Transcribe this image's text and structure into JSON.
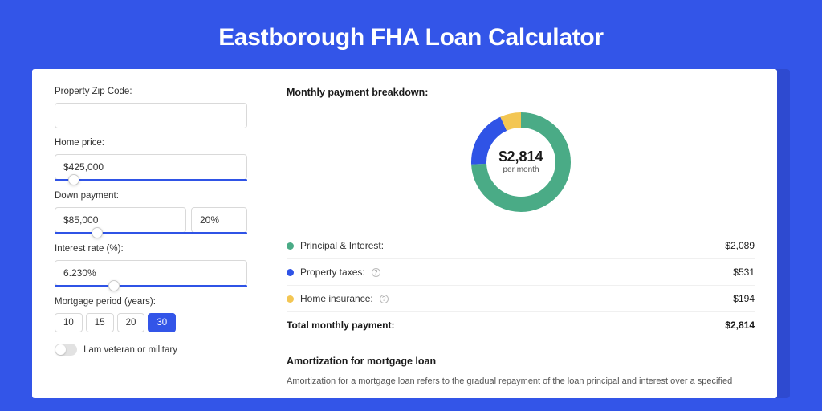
{
  "page": {
    "title": "Eastborough FHA Loan Calculator",
    "background_color": "#3355e8",
    "card_shadow_color": "#2e4ad0",
    "card_bg": "#ffffff"
  },
  "form": {
    "zip": {
      "label": "Property Zip Code:",
      "value": ""
    },
    "home_price": {
      "label": "Home price:",
      "value": "$425,000",
      "slider_pct": 7
    },
    "down_payment": {
      "label": "Down payment:",
      "value": "$85,000",
      "pct": "20%",
      "slider_pct": 19
    },
    "interest": {
      "label": "Interest rate (%):",
      "value": "6.230%",
      "slider_pct": 28
    },
    "period": {
      "label": "Mortgage period (years):",
      "options": [
        "10",
        "15",
        "20",
        "30"
      ],
      "selected": "30"
    },
    "veteran": {
      "label": "I am veteran or military",
      "on": false
    }
  },
  "breakdown": {
    "title": "Monthly payment breakdown:",
    "center_amount": "$2,814",
    "center_sub": "per month",
    "donut": {
      "size": 124,
      "stroke": 19,
      "slices": [
        {
          "label": "Principal & Interest:",
          "value": "$2,089",
          "pct": 74.2,
          "color": "#4aab86",
          "has_info": false
        },
        {
          "label": "Property taxes:",
          "value": "$531",
          "pct": 18.9,
          "color": "#2f53e6",
          "has_info": true
        },
        {
          "label": "Home insurance:",
          "value": "$194",
          "pct": 6.9,
          "color": "#f3c653",
          "has_info": true
        }
      ]
    },
    "total": {
      "label": "Total monthly payment:",
      "value": "$2,814"
    }
  },
  "amortization": {
    "title": "Amortization for mortgage loan",
    "text": "Amortization for a mortgage loan refers to the gradual repayment of the loan principal and interest over a specified"
  }
}
